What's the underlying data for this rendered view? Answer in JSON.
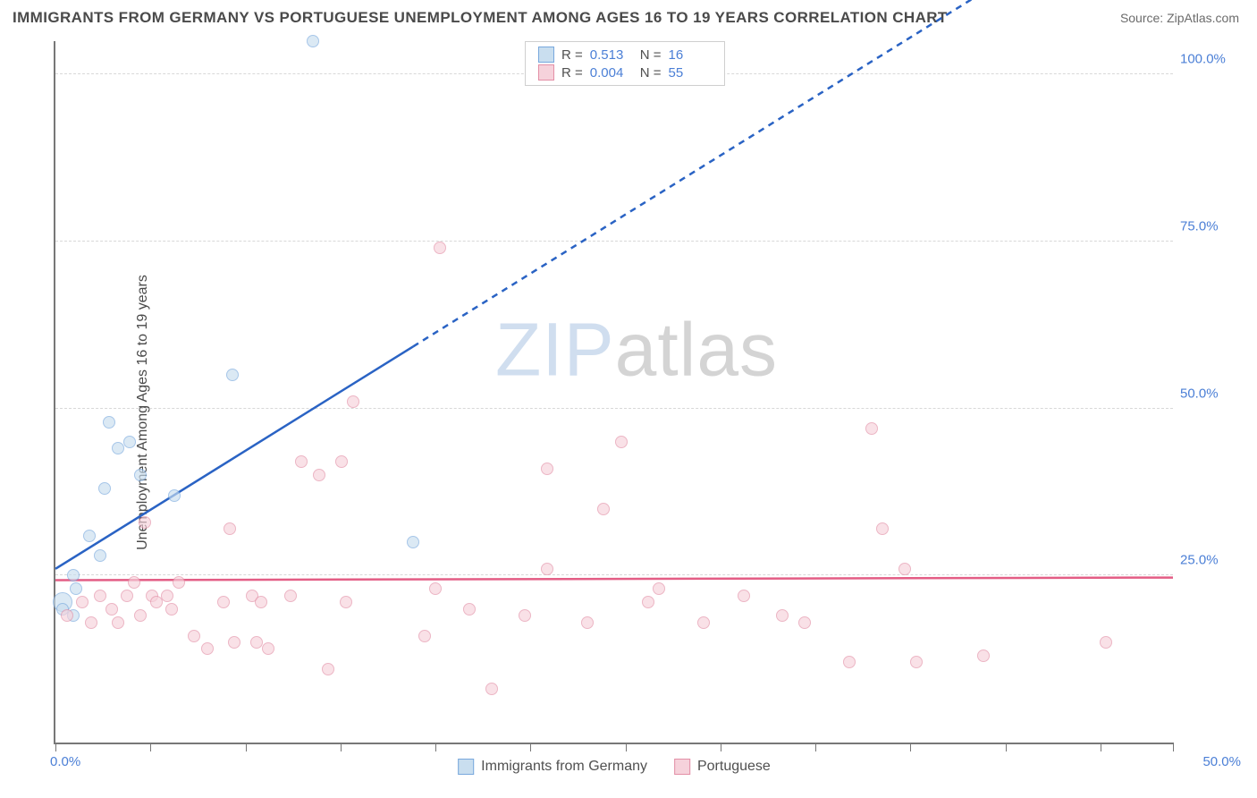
{
  "header": {
    "title": "IMMIGRANTS FROM GERMANY VS PORTUGUESE UNEMPLOYMENT AMONG AGES 16 TO 19 YEARS CORRELATION CHART",
    "source": "Source: ZipAtlas.com"
  },
  "chart": {
    "type": "scatter",
    "ylabel": "Unemployment Among Ages 16 to 19 years",
    "xlim": [
      0,
      50
    ],
    "ylim": [
      0,
      105
    ],
    "xtick_positions_pct": [
      0,
      8.5,
      17,
      25.5,
      34,
      42.5,
      51,
      59.5,
      68,
      76.5,
      85,
      93.5,
      100
    ],
    "xtick_labels": {
      "0": "0.0%",
      "100": "50.0%"
    },
    "ygrid": [
      25,
      50,
      75,
      100
    ],
    "ygrid_labels": {
      "25": "25.0%",
      "50": "50.0%",
      "75": "75.0%",
      "100": "100.0%"
    },
    "background_color": "#ffffff",
    "grid_color": "#d8d8d8",
    "axis_color": "#777777",
    "tick_label_color": "#4b7fd6",
    "marker_radius": 7,
    "series": [
      {
        "name": "Immigrants from Germany",
        "fill": "#c9deef",
        "stroke": "#78a8dd",
        "fill_opacity": 0.65,
        "regression": {
          "color": "#2a63c4",
          "width": 2.5,
          "y_at_x0": 26,
          "y_at_x50": 130,
          "dash_after_x": 16
        },
        "points": [
          {
            "x": 0.3,
            "y": 21,
            "r": 11
          },
          {
            "x": 0.3,
            "y": 20,
            "r": 7
          },
          {
            "x": 0.8,
            "y": 19
          },
          {
            "x": 0.9,
            "y": 23
          },
          {
            "x": 0.8,
            "y": 25
          },
          {
            "x": 1.5,
            "y": 31
          },
          {
            "x": 2.0,
            "y": 28
          },
          {
            "x": 2.2,
            "y": 38
          },
          {
            "x": 2.4,
            "y": 48
          },
          {
            "x": 2.8,
            "y": 44
          },
          {
            "x": 3.3,
            "y": 45
          },
          {
            "x": 3.8,
            "y": 40
          },
          {
            "x": 5.3,
            "y": 37
          },
          {
            "x": 7.9,
            "y": 55
          },
          {
            "x": 11.5,
            "y": 105
          },
          {
            "x": 16.0,
            "y": 30
          }
        ]
      },
      {
        "name": "Portuguese",
        "fill": "#f6d2db",
        "stroke": "#e38fa6",
        "fill_opacity": 0.65,
        "regression": {
          "color": "#e35d85",
          "width": 2.5,
          "y_at_x0": 24.3,
          "y_at_x50": 24.7
        },
        "points": [
          {
            "x": 0.5,
            "y": 19
          },
          {
            "x": 1.2,
            "y": 21
          },
          {
            "x": 1.6,
            "y": 18
          },
          {
            "x": 2.0,
            "y": 22
          },
          {
            "x": 2.5,
            "y": 20
          },
          {
            "x": 2.8,
            "y": 18
          },
          {
            "x": 3.2,
            "y": 22
          },
          {
            "x": 3.5,
            "y": 24
          },
          {
            "x": 3.8,
            "y": 19
          },
          {
            "x": 4.0,
            "y": 33
          },
          {
            "x": 4.3,
            "y": 22
          },
          {
            "x": 4.5,
            "y": 21
          },
          {
            "x": 5.0,
            "y": 22
          },
          {
            "x": 5.2,
            "y": 20
          },
          {
            "x": 5.5,
            "y": 24
          },
          {
            "x": 6.2,
            "y": 16
          },
          {
            "x": 6.8,
            "y": 14
          },
          {
            "x": 7.5,
            "y": 21
          },
          {
            "x": 7.8,
            "y": 32
          },
          {
            "x": 8.0,
            "y": 15
          },
          {
            "x": 8.8,
            "y": 22
          },
          {
            "x": 9.0,
            "y": 15
          },
          {
            "x": 9.2,
            "y": 21
          },
          {
            "x": 9.5,
            "y": 14
          },
          {
            "x": 10.5,
            "y": 22
          },
          {
            "x": 11.0,
            "y": 42
          },
          {
            "x": 11.8,
            "y": 40
          },
          {
            "x": 12.2,
            "y": 11
          },
          {
            "x": 12.8,
            "y": 42
          },
          {
            "x": 13.0,
            "y": 21
          },
          {
            "x": 13.3,
            "y": 51
          },
          {
            "x": 16.5,
            "y": 16
          },
          {
            "x": 17.0,
            "y": 23
          },
          {
            "x": 17.2,
            "y": 74
          },
          {
            "x": 18.5,
            "y": 20
          },
          {
            "x": 19.5,
            "y": 8
          },
          {
            "x": 21.0,
            "y": 19
          },
          {
            "x": 22.0,
            "y": 41
          },
          {
            "x": 22.0,
            "y": 26
          },
          {
            "x": 23.8,
            "y": 18
          },
          {
            "x": 24.5,
            "y": 35
          },
          {
            "x": 25.3,
            "y": 45
          },
          {
            "x": 26.5,
            "y": 21
          },
          {
            "x": 27.0,
            "y": 23
          },
          {
            "x": 29.0,
            "y": 18
          },
          {
            "x": 30.8,
            "y": 22
          },
          {
            "x": 32.5,
            "y": 19
          },
          {
            "x": 33.5,
            "y": 18
          },
          {
            "x": 35.5,
            "y": 12
          },
          {
            "x": 36.5,
            "y": 47
          },
          {
            "x": 37.0,
            "y": 32
          },
          {
            "x": 38.0,
            "y": 26
          },
          {
            "x": 38.5,
            "y": 12
          },
          {
            "x": 41.5,
            "y": 13
          },
          {
            "x": 47.0,
            "y": 15
          }
        ]
      }
    ],
    "legend_top": {
      "rows": [
        {
          "swatch_fill": "#c9deef",
          "swatch_stroke": "#78a8dd",
          "r_label": "R =",
          "r_val": "0.513",
          "n_label": "N =",
          "n_val": "16"
        },
        {
          "swatch_fill": "#f6d2db",
          "swatch_stroke": "#e38fa6",
          "r_label": "R =",
          "r_val": "0.004",
          "n_label": "N =",
          "n_val": "55"
        }
      ]
    },
    "legend_bottom": [
      {
        "swatch_fill": "#c9deef",
        "swatch_stroke": "#78a8dd",
        "label": "Immigrants from Germany"
      },
      {
        "swatch_fill": "#f6d2db",
        "swatch_stroke": "#e38fa6",
        "label": "Portuguese"
      }
    ],
    "watermark": {
      "part1": "ZIP",
      "part2": "atlas"
    }
  }
}
